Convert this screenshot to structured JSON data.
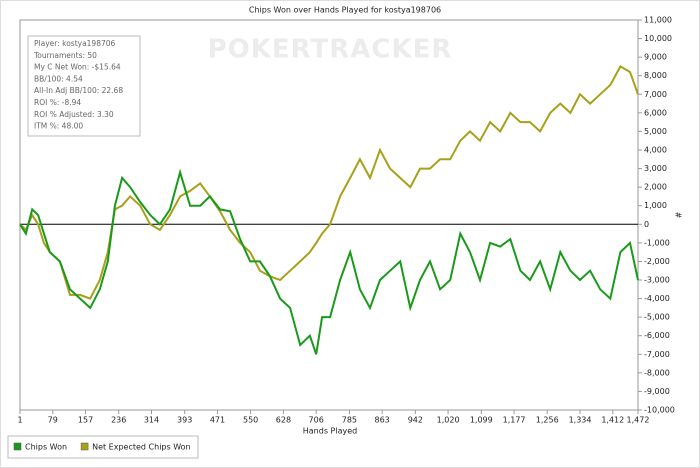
{
  "chart_data": {
    "type": "line",
    "title": "Chips Won over Hands Played for kostya198706",
    "x_label": "Hands Played",
    "y_label": "#",
    "watermark": "POKERTRACKER",
    "annotations": [
      "Player: kostya198706",
      "Tournaments: 50",
      "My C Net Won: -$15.64",
      "BB/100: 4.54",
      "All-In Adj BB/100: 22.68",
      "ROI %: -8.94",
      "ROI % Adjusted: 3.30",
      "ITM %: 48.00"
    ],
    "x": [
      1,
      15,
      30,
      44,
      58,
      72,
      96,
      120,
      144,
      168,
      191,
      210,
      227,
      244,
      263,
      287,
      311,
      334,
      358,
      382,
      406,
      430,
      453,
      477,
      501,
      525,
      549,
      572,
      596,
      620,
      644,
      668,
      691,
      706,
      720,
      739,
      763,
      787,
      810,
      834,
      858,
      882,
      906,
      930,
      953,
      977,
      1001,
      1025,
      1049,
      1072,
      1096,
      1120,
      1144,
      1168,
      1192,
      1215,
      1239,
      1263,
      1287,
      1311,
      1334,
      1358,
      1382,
      1406,
      1430,
      1453,
      1472
    ],
    "series": [
      {
        "name": "Chips Won",
        "color": "#1a9a1a",
        "values": [
          0,
          -500,
          800,
          500,
          -500,
          -1500,
          -2000,
          -3500,
          -4000,
          -4500,
          -3500,
          -2000,
          1000,
          2500,
          2000,
          1200,
          500,
          0,
          800,
          2800,
          1000,
          1000,
          1500,
          800,
          700,
          -800,
          -2000,
          -2000,
          -2800,
          -4000,
          -4500,
          -6500,
          -6000,
          -7000,
          -5000,
          -5000,
          -3000,
          -1500,
          -3500,
          -4500,
          -3000,
          -2500,
          -2000,
          -4500,
          -3000,
          -2000,
          -3500,
          -3000,
          -500,
          -1500,
          -3000,
          -1000,
          -1200,
          -800,
          -2500,
          -3000,
          -2000,
          -3500,
          -1500,
          -2500,
          -3000,
          -2500,
          -3500,
          -4000,
          -1500,
          -1000,
          -3000
        ]
      },
      {
        "name": "Net Expected Chips Won",
        "color": "#a8a01a",
        "values": [
          0,
          -300,
          500,
          0,
          -1000,
          -1500,
          -2000,
          -3800,
          -3800,
          -4000,
          -3000,
          -1500,
          800,
          1000,
          1500,
          1000,
          0,
          -300,
          500,
          1500,
          1800,
          2200,
          1500,
          700,
          -300,
          -1000,
          -1500,
          -2500,
          -2800,
          -3000,
          -2500,
          -2000,
          -1500,
          -1000,
          -500,
          0,
          1500,
          2500,
          3500,
          2500,
          4000,
          3000,
          2500,
          2000,
          3000,
          3000,
          3500,
          3500,
          4500,
          5000,
          4500,
          5500,
          5000,
          6000,
          5500,
          5500,
          5000,
          6000,
          6500,
          6000,
          7000,
          6500,
          7000,
          7500,
          8500,
          8200,
          7000
        ]
      }
    ],
    "xlim": [
      1,
      1472
    ],
    "xticks": [
      1,
      79,
      157,
      236,
      314,
      393,
      471,
      550,
      628,
      706,
      785,
      863,
      942,
      {
        "value": 1020,
        "label": "1,020"
      },
      {
        "value": 1099,
        "label": "1,099"
      },
      {
        "value": 1177,
        "label": "1,177"
      },
      {
        "value": 1256,
        "label": "1,256"
      },
      {
        "value": 1334,
        "label": "1,334"
      },
      {
        "value": 1412,
        "label": "1,412"
      },
      {
        "value": 1472,
        "label": "1,472"
      }
    ],
    "ylim": [
      -10000,
      11000
    ],
    "yticks": [
      {
        "value": -10000,
        "label": "-10,000"
      },
      {
        "value": -9000,
        "label": "-9,000"
      },
      {
        "value": -8000,
        "label": "-8,000"
      },
      {
        "value": -7000,
        "label": "-7,000"
      },
      {
        "value": -6000,
        "label": "-6,000"
      },
      {
        "value": -5000,
        "label": "-5,000"
      },
      {
        "value": -4000,
        "label": "-4,000"
      },
      {
        "value": -3000,
        "label": "-3,000"
      },
      {
        "value": -2000,
        "label": "-2,000"
      },
      {
        "value": -1000,
        "label": "-1,000"
      },
      0,
      {
        "value": 1000,
        "label": "1,000"
      },
      {
        "value": 2000,
        "label": "2,000"
      },
      {
        "value": 3000,
        "label": "3,000"
      },
      {
        "value": 4000,
        "label": "4,000"
      },
      {
        "value": 5000,
        "label": "5,000"
      },
      {
        "value": 6000,
        "label": "6,000"
      },
      {
        "value": 7000,
        "label": "7,000"
      },
      {
        "value": 8000,
        "label": "8,000"
      },
      {
        "value": 9000,
        "label": "9,000"
      },
      {
        "value": 10000,
        "label": "10,000"
      },
      {
        "value": 11000,
        "label": "11,000"
      }
    ],
    "zero_line": true,
    "legend": "bottom-left"
  }
}
